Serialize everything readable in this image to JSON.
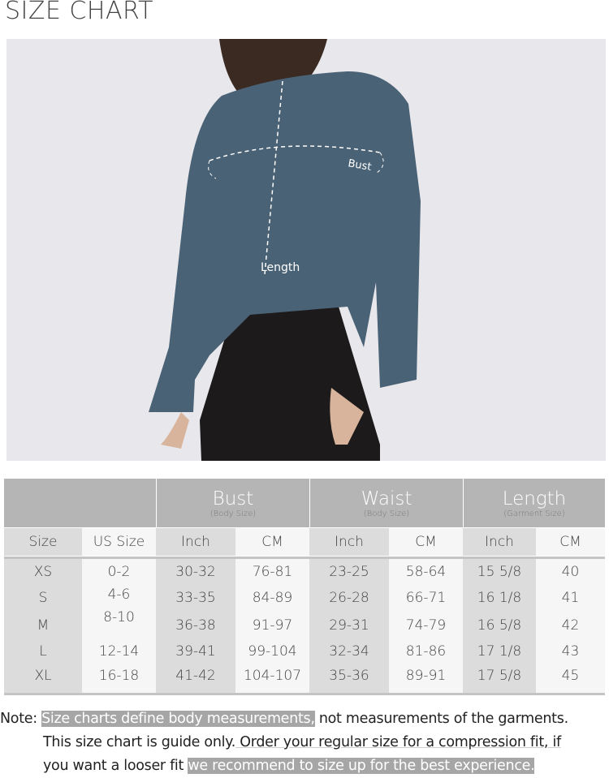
{
  "title": "SIZE CHART",
  "photo": {
    "bust_label": "Bust",
    "length_label": "Length",
    "shirt_color": "#4a6275",
    "pants_color": "#1c1a1a"
  },
  "table": {
    "groups": [
      {
        "label": "Bust",
        "sub": "(Body Size)"
      },
      {
        "label": "Waist",
        "sub": "(Body Size)"
      },
      {
        "label": "Length",
        "sub": "(Garment Size)"
      }
    ],
    "columns": [
      "Size",
      "US Size",
      "Inch",
      "CM",
      "Inch",
      "CM",
      "Inch",
      "CM"
    ],
    "rows": [
      [
        "XS",
        "0-2",
        "30-32",
        "76-81",
        "23-25",
        "58-64",
        "15 5/8",
        "40"
      ],
      [
        "S",
        "4-6",
        "33-35",
        "84-89",
        "26-28",
        "66-71",
        "16 1/8",
        "41"
      ],
      [
        "M",
        "8-10",
        "36-38",
        "91-97",
        "29-31",
        "74-79",
        "16 5/8",
        "42"
      ],
      [
        "L",
        "12-14",
        "39-41",
        "99-104",
        "32-34",
        "81-86",
        "17 1/8",
        "43"
      ],
      [
        "XL",
        "16-18",
        "41-42",
        "104-107",
        "35-36",
        "89-91",
        "17 5/8",
        "45"
      ]
    ]
  },
  "note": {
    "prefix": "Note:",
    "hl1": "Size charts define body measurements,",
    "t1": " not measurements of the garments.",
    "t2": "This size chart is guide only.",
    "t3": " Order your regular size for a compression fit, if",
    "t4": "you want a looser fit ",
    "hl2": "we recommend to size up for the best experience."
  }
}
